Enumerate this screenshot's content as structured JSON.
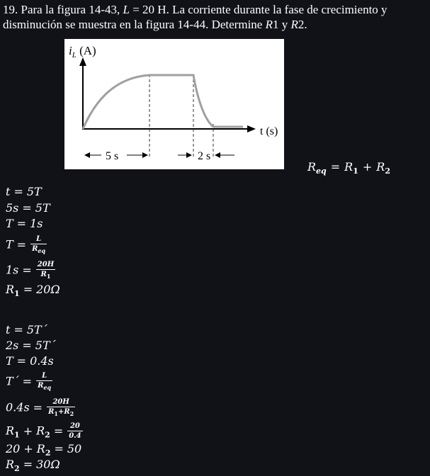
{
  "problem": {
    "prefix": "19. Para la figura 14-43, ",
    "var_L": "L",
    "after_L": " = 20 H. La corriente durante la fase de crecimiento y disminución se muestra en la figura 14-44. Determine ",
    "var_R1": "R",
    "r1_digit": "1",
    "conj": " y ",
    "var_R2": "R",
    "r2_digit": "2",
    "end": "."
  },
  "figure": {
    "y_axis_label_var": "i",
    "y_axis_label_sub": "L",
    "y_axis_label_unit": " (A)",
    "x_axis_label": "t (s)",
    "rise_interval_label": "5 s",
    "fall_interval_label": "2 s",
    "curve_color": "#a0a0a0",
    "axis_color": "#000000"
  },
  "req_formula": {
    "lhs": "R",
    "lhs_sub": "eq",
    "eq": "=",
    "r1": "R",
    "r1_sub": "1",
    "plus": "+",
    "r2": "R",
    "r2_sub": "2"
  },
  "solution_r1": {
    "l1": {
      "a": "t",
      "op": "=",
      "b": "5T"
    },
    "l2": {
      "a": "5s",
      "op": "=",
      "b": "5T"
    },
    "l3": {
      "a": "T",
      "op": "=",
      "b": "1s"
    },
    "l4": {
      "a": "T",
      "op": "=",
      "num": "L",
      "den": "R",
      "den_sub": "eq"
    },
    "l5": {
      "a": "1s",
      "op": "=",
      "num": "20H",
      "den": "R",
      "den_sub": "1"
    },
    "l6": {
      "a": "R",
      "a_sub": "1",
      "op": "=",
      "b": "20Ω"
    }
  },
  "solution_r2": {
    "l1": {
      "a": "t",
      "op": "=",
      "b": "5T´"
    },
    "l2": {
      "a": "2s",
      "op": "=",
      "b": "5T´"
    },
    "l3": {
      "a": "T",
      "op": "=",
      "b": "0.4s"
    },
    "l4": {
      "a": "T´",
      "op": "=",
      "num": "L",
      "den": "R",
      "den_sub": "eq"
    },
    "l5": {
      "a": "0.4s",
      "op": "=",
      "num": "20H",
      "den1": "R",
      "den1_sub": "1",
      "den_plus": "+",
      "den2": "R",
      "den2_sub": "2"
    },
    "l6": {
      "a1": "R",
      "a1_sub": "1",
      "plus": "+",
      "a2": "R",
      "a2_sub": "2",
      "op": "=",
      "num": "20",
      "den": "0.4"
    },
    "l7": {
      "a": "20",
      "plus": "+",
      "b": "R",
      "b_sub": "2",
      "op": "=",
      "c": "50"
    },
    "l8": {
      "a": "R",
      "a_sub": "2",
      "op": "=",
      "b": "30Ω"
    }
  }
}
